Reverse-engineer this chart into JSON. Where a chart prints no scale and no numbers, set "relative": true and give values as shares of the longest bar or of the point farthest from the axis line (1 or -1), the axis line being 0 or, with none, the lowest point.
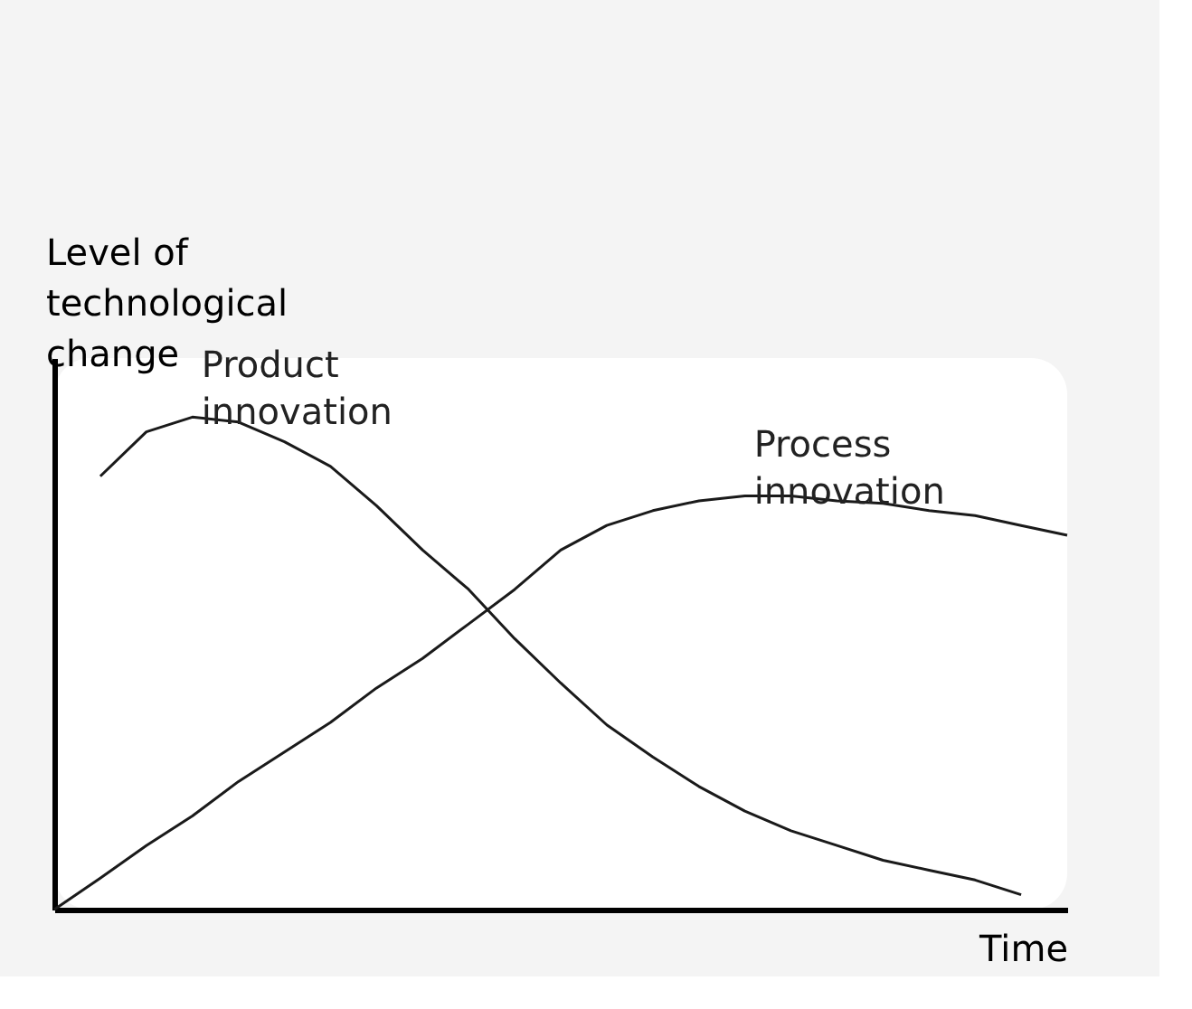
{
  "chart_data": {
    "type": "line",
    "relative": true,
    "xlabel": "Time",
    "ylabel": "Level of technological change",
    "categories": [
      null,
      null,
      null,
      null,
      null,
      null,
      null,
      null,
      null,
      null,
      null,
      null,
      null,
      null,
      null,
      null,
      null,
      null,
      null,
      null,
      null,
      null,
      null
    ],
    "series": [
      {
        "name": "Product innovation",
        "color": "#1a1a1a",
        "values": [
          null,
          0.88,
          0.97,
          1.0,
          0.99,
          0.95,
          0.9,
          0.82,
          0.73,
          0.65,
          0.55,
          0.46,
          0.375,
          0.31,
          0.25,
          0.2,
          0.16,
          0.13,
          0.1,
          0.08,
          0.06,
          0.03,
          null
        ]
      },
      {
        "name": "Process innovation",
        "color": "#1a1a1a",
        "values": [
          0,
          0.064,
          0.13,
          0.19,
          0.26,
          0.32,
          0.38,
          0.45,
          0.51,
          0.58,
          0.65,
          0.73,
          0.78,
          0.81,
          0.83,
          0.84,
          0.84,
          0.83,
          0.825,
          0.81,
          0.8,
          0.78,
          0.76
        ]
      }
    ],
    "legend": false,
    "tick_labels": false,
    "marker": "none",
    "line_style": "solid"
  }
}
